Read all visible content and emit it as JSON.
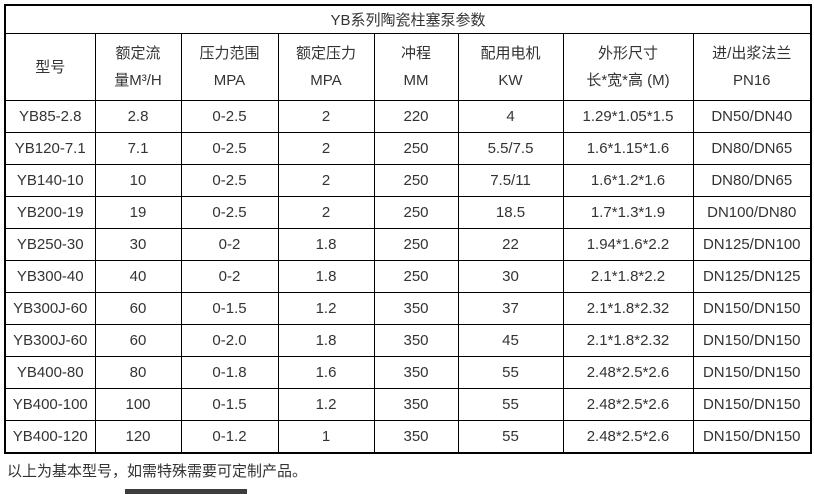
{
  "title": "YB系列陶瓷柱塞泵参数",
  "footnote": "以上为基本型号，如需特殊需要可定制产品。",
  "colors": {
    "text": "#333333",
    "border": "#000000",
    "background": "#ffffff",
    "cutoff_bar": "#3d3d3d"
  },
  "table": {
    "headers": [
      [
        "型号"
      ],
      [
        "额定流",
        "量M³/H"
      ],
      [
        "压力范围",
        "MPA"
      ],
      [
        "额定压力",
        "MPA"
      ],
      [
        "冲程",
        "MM"
      ],
      [
        "配用电机",
        "KW"
      ],
      [
        "外形尺寸",
        "长*宽*高 (M)"
      ],
      [
        "进/出浆法兰",
        "PN16"
      ]
    ],
    "rows": [
      [
        "YB85-2.8",
        "2.8",
        "0-2.5",
        "2",
        "220",
        "4",
        "1.29*1.05*1.5",
        "DN50/DN40"
      ],
      [
        "YB120-7.1",
        "7.1",
        "0-2.5",
        "2",
        "250",
        "5.5/7.5",
        "1.6*1.15*1.6",
        "DN80/DN65"
      ],
      [
        "YB140-10",
        "10",
        "0-2.5",
        "2",
        "250",
        "7.5/11",
        "1.6*1.2*1.6",
        "DN80/DN65"
      ],
      [
        "YB200-19",
        "19",
        "0-2.5",
        "2",
        "250",
        "18.5",
        "1.7*1.3*1.9",
        "DN100/DN80"
      ],
      [
        "YB250-30",
        "30",
        "0-2",
        "1.8",
        "250",
        "22",
        "1.94*1.6*2.2",
        "DN125/DN100"
      ],
      [
        "YB300-40",
        "40",
        "0-2",
        "1.8",
        "250",
        "30",
        "2.1*1.8*2.2",
        "DN125/DN125"
      ],
      [
        "YB300J-60",
        "60",
        "0-1.5",
        "1.2",
        "350",
        "37",
        "2.1*1.8*2.32",
        "DN150/DN150"
      ],
      [
        "YB300J-60",
        "60",
        "0-2.0",
        "1.8",
        "350",
        "45",
        "2.1*1.8*2.32",
        "DN150/DN150"
      ],
      [
        "YB400-80",
        "80",
        "0-1.8",
        "1.6",
        "350",
        "55",
        "2.48*2.5*2.6",
        "DN150/DN150"
      ],
      [
        "YB400-100",
        "100",
        "0-1.5",
        "1.2",
        "350",
        "55",
        "2.48*2.5*2.6",
        "DN150/DN150"
      ],
      [
        "YB400-120",
        "120",
        "0-1.2",
        "1",
        "350",
        "55",
        "2.48*2.5*2.6",
        "DN150/DN150"
      ]
    ]
  }
}
